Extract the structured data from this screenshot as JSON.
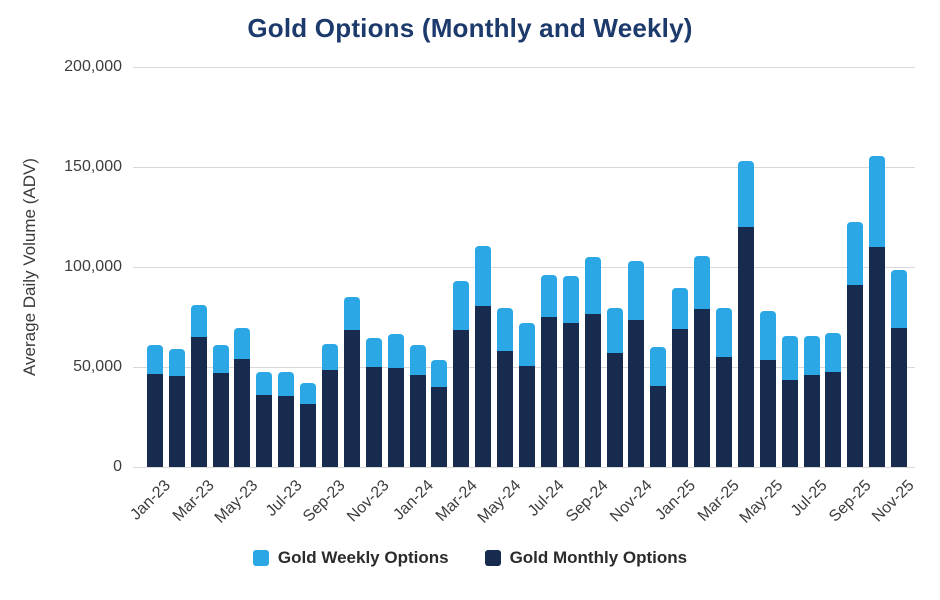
{
  "page": {
    "background": "#ffffff"
  },
  "chart_data": {
    "type": "bar",
    "stacked": true,
    "title": "Gold Options (Monthly and Weekly)",
    "ylabel": "Average Daily Volume (ADV)",
    "xlabel": "",
    "ylim": [
      0,
      200000
    ],
    "yticks": [
      {
        "value": 0,
        "label": "0"
      },
      {
        "value": 50000,
        "label": "50,000"
      },
      {
        "value": 100000,
        "label": "100,000"
      },
      {
        "value": 150000,
        "label": "150,000"
      },
      {
        "value": 200000,
        "label": "200,000"
      }
    ],
    "grid": "horizontal",
    "gridline_color": "#d9d9d9",
    "axis_text_color": "#3d3d3d",
    "title_color": "#1c3a6b",
    "legend_position": "bottom",
    "legend_order": [
      "Gold Weekly Options",
      "Gold Monthly Options"
    ],
    "x_label_every": 2,
    "categories": [
      "Jan-23",
      "Feb-23",
      "Mar-23",
      "Apr-23",
      "May-23",
      "Jun-23",
      "Jul-23",
      "Aug-23",
      "Sep-23",
      "Oct-23",
      "Nov-23",
      "Dec-23",
      "Jan-24",
      "Feb-24",
      "Mar-24",
      "Apr-24",
      "May-24",
      "Jun-24",
      "Jul-24",
      "Aug-24",
      "Sep-24",
      "Oct-24",
      "Nov-24",
      "Dec-24",
      "Jan-25",
      "Feb-25",
      "Mar-25",
      "Apr-25",
      "May-25",
      "Jun-25",
      "Jul-25",
      "Aug-25",
      "Sep-25",
      "Oct-25",
      "Nov-25"
    ],
    "series": [
      {
        "name": "Gold Monthly Options",
        "color": "#172b4f",
        "stack_order": "bottom",
        "values": [
          46500,
          45500,
          65000,
          47000,
          54000,
          36000,
          35500,
          31500,
          48500,
          68500,
          50000,
          49500,
          46000,
          40000,
          68500,
          80500,
          58000,
          50500,
          75000,
          72000,
          76500,
          57000,
          73500,
          40500,
          69000,
          79000,
          55000,
          120000,
          53500,
          43500,
          46000,
          47500,
          91000,
          110000,
          69500
        ]
      },
      {
        "name": "Gold Weekly Options",
        "color": "#2aa7e4",
        "stack_order": "top",
        "values": [
          14500,
          13500,
          16000,
          14000,
          15500,
          11500,
          12000,
          10500,
          13000,
          16500,
          14500,
          17000,
          15000,
          13500,
          24500,
          30000,
          21500,
          21500,
          21000,
          23500,
          28500,
          22500,
          29500,
          19500,
          20500,
          26500,
          24500,
          33000,
          24500,
          22000,
          19500,
          19500,
          31500,
          45500,
          29000
        ]
      }
    ]
  }
}
